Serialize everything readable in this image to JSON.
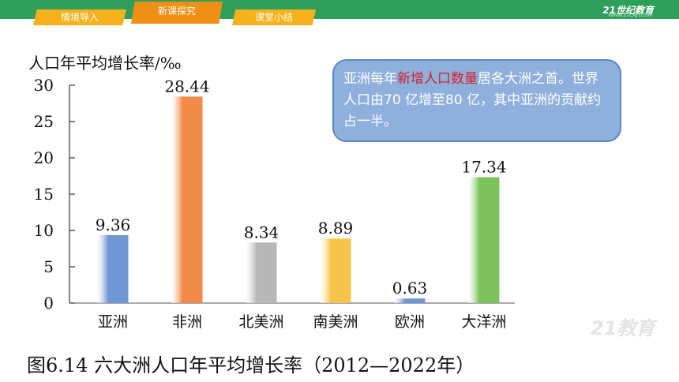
{
  "nav": {
    "tabs": [
      {
        "label": "情境导入"
      },
      {
        "label": "新课探究"
      },
      {
        "label": "课堂小结"
      }
    ],
    "brand": "21世纪教育",
    "brand_sub": "WWW.21CNJY.COM"
  },
  "callout": {
    "pre": "亚洲每年",
    "highlight": "新增人口数量",
    "post": "居各大洲之首。世界人口由70 亿增至80 亿，其中亚洲的贡献约占一半。"
  },
  "figure": {
    "caption": "图6.14  六大洲人口年平均增长率（2012—2022年）"
  },
  "watermark": "21教育",
  "colors": {
    "top_bar": "#2e9e5b",
    "tab": "#f6b21c",
    "tab_active": "#f08f15",
    "callout_fill": "#8fb0dd",
    "highlight": "#d61f26"
  },
  "chart_data": {
    "type": "bar",
    "title": "",
    "ylabel": "人口年平均增长率/‰",
    "xlabel": "",
    "ylim": [
      0,
      30
    ],
    "yticks": [
      0,
      5,
      10,
      15,
      20,
      25,
      30
    ],
    "categories": [
      "亚洲",
      "非洲",
      "北美洲",
      "南美洲",
      "欧洲",
      "大洋洲"
    ],
    "values": [
      9.36,
      28.44,
      8.34,
      8.89,
      0.63,
      17.34
    ],
    "value_labels": [
      "9.36",
      "28.44",
      "8.34",
      "8.89",
      "0.63",
      "17.34"
    ],
    "bar_colors": [
      "#6f97d4",
      "#f28a4a",
      "#b7b7b7",
      "#f5c54a",
      "#6f97d4",
      "#7cc35c"
    ],
    "grid": false,
    "legend": "none"
  }
}
